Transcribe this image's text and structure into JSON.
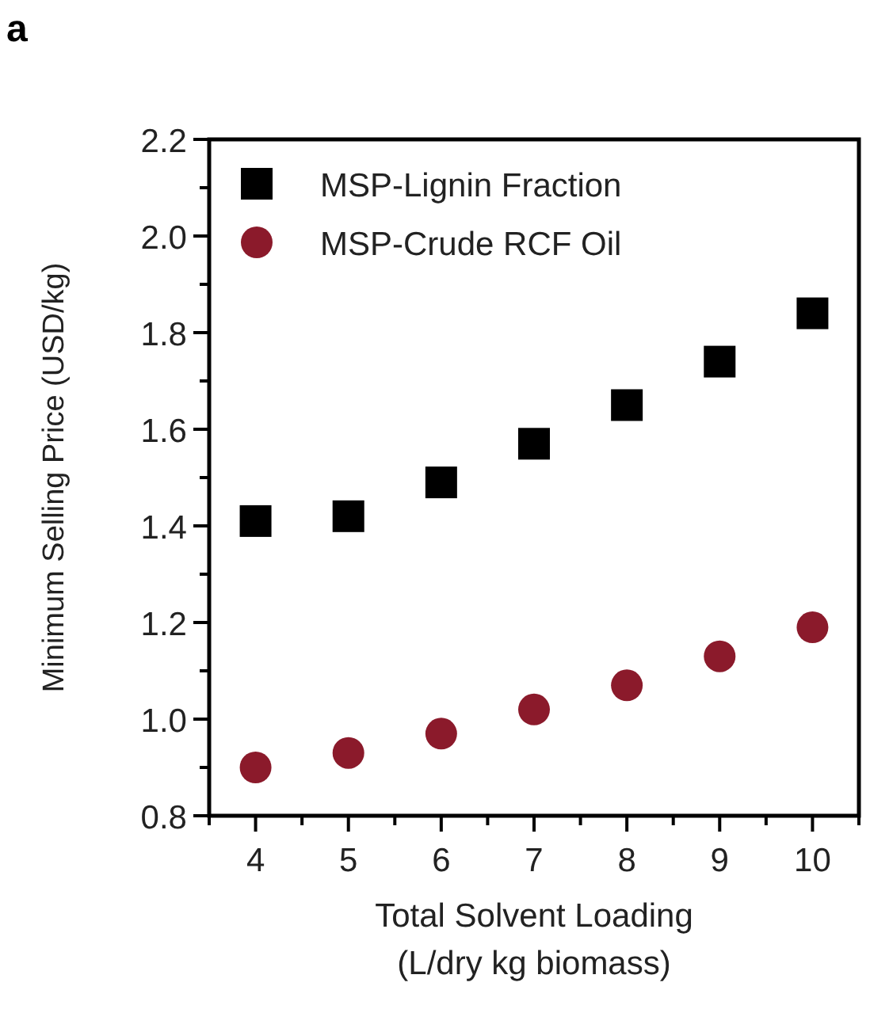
{
  "chart_data": {
    "type": "scatter",
    "title": "a",
    "xlabel": "Total Solvent Loading\n(L/dry kg biomass)",
    "ylabel": "Minimum Selling Price (USD/kg)",
    "x": [
      4,
      5,
      6,
      7,
      8,
      9,
      10
    ],
    "series": [
      {
        "name": "MSP-Lignin Fraction",
        "color": "#000000",
        "marker": "square",
        "values": [
          1.41,
          1.42,
          1.49,
          1.57,
          1.65,
          1.74,
          1.84
        ]
      },
      {
        "name": "MSP-Crude RCF Oil",
        "color": "#8b1a2b",
        "marker": "circle",
        "values": [
          0.9,
          0.93,
          0.97,
          1.02,
          1.07,
          1.13,
          1.19
        ]
      }
    ],
    "xlim": [
      3.5,
      10.5
    ],
    "xticks": [
      {
        "value": 3.5,
        "label": null
      },
      4,
      {
        "value": 4.5,
        "label": null
      },
      5,
      {
        "value": 5.5,
        "label": null
      },
      6,
      {
        "value": 6.5,
        "label": null
      },
      7,
      {
        "value": 7.5,
        "label": null
      },
      8,
      {
        "value": 8.5,
        "label": null
      },
      9,
      {
        "value": 9.5,
        "label": null
      },
      10,
      {
        "value": 10.5,
        "label": null
      }
    ],
    "ylim": [
      0.8,
      2.2
    ],
    "yticks": [
      {
        "value": 0.8,
        "label": "0.8"
      },
      {
        "value": 0.9,
        "label": null
      },
      {
        "value": 1.0,
        "label": "1.0"
      },
      {
        "value": 1.1,
        "label": null
      },
      1.2,
      {
        "value": 1.3,
        "label": null
      },
      1.4,
      {
        "value": 1.5,
        "label": null
      },
      1.6,
      {
        "value": 1.7,
        "label": null
      },
      1.8,
      {
        "value": 1.9,
        "label": null
      },
      {
        "value": 2.0,
        "label": "2.0"
      },
      {
        "value": 2.1,
        "label": null
      },
      2.2
    ],
    "grid": false,
    "legend": "top left"
  }
}
